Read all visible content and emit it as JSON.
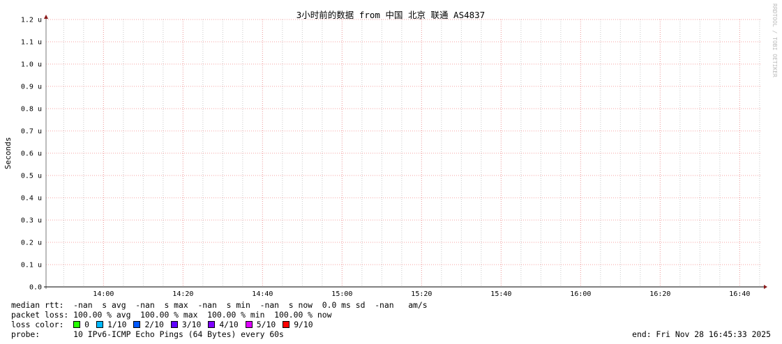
{
  "chart_data": {
    "type": "line",
    "title": "3小时前的数据 from 中国 北京 联通 AS4837",
    "ylabel": "Seconds",
    "xlabel": "",
    "ylim": [
      0,
      1.2
    ],
    "yunit": "u",
    "y_ticks": [
      "0.0",
      "0.1 u",
      "0.2 u",
      "0.3 u",
      "0.4 u",
      "0.5 u",
      "0.6 u",
      "0.7 u",
      "0.8 u",
      "0.9 u",
      "1.0 u",
      "1.1 u",
      "1.2 u"
    ],
    "xlim": [
      "13:45:33",
      "16:45:33"
    ],
    "x_ticks": [
      "14:00",
      "14:20",
      "14:40",
      "15:00",
      "15:20",
      "15:40",
      "16:00",
      "16:20",
      "16:40"
    ],
    "grid": true,
    "series": [],
    "watermark": "RRDTOOL / TOBI OETIKER"
  },
  "legend": {
    "median_rtt": "median rtt:  -nan  s avg  -nan  s max  -nan  s min  -nan  s now  0.0 ms sd  -nan   am/s",
    "packet_loss": "packet loss: 100.00 % avg  100.00 % max  100.00 % min  100.00 % now",
    "loss_color_label": "loss color:",
    "loss_colors": [
      {
        "label": "0",
        "color": "#26ff00"
      },
      {
        "label": "1/10",
        "color": "#00b8ff"
      },
      {
        "label": "2/10",
        "color": "#0059ff"
      },
      {
        "label": "3/10",
        "color": "#5e00ff"
      },
      {
        "label": "4/10",
        "color": "#7e00ff"
      },
      {
        "label": "5/10",
        "color": "#dd00ff"
      },
      {
        "label": "9/10",
        "color": "#ff0000"
      }
    ],
    "probe": "probe:       10 IPv6-ICMP Echo Pings (64 Bytes) every 60s",
    "end": "end: Fri Nov 28 16:45:33 2025"
  }
}
